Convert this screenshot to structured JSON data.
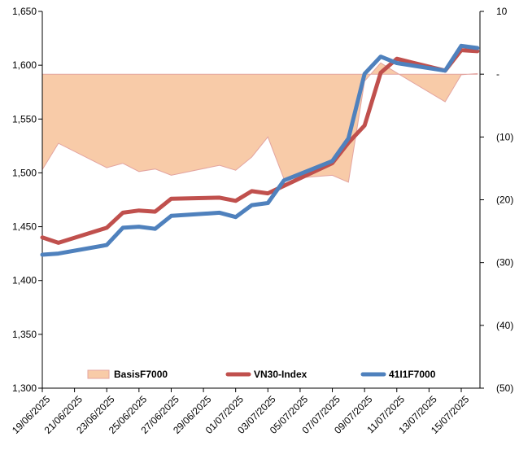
{
  "chart_data": {
    "type": "line",
    "dates": [
      "19/06/2025",
      "20/06/2025",
      "23/06/2025",
      "24/06/2025",
      "25/06/2025",
      "26/06/2025",
      "27/06/2025",
      "30/06/2025",
      "01/07/2025",
      "02/07/2025",
      "03/07/2025",
      "04/07/2025",
      "07/07/2025",
      "08/07/2025",
      "09/07/2025",
      "10/07/2025",
      "11/07/2025",
      "14/07/2025",
      "15/07/2025",
      "16/07/2025"
    ],
    "x_tick_labels": [
      "19/06/2025",
      "21/06/2025",
      "23/06/2025",
      "25/06/2025",
      "27/06/2025",
      "29/06/2025",
      "01/07/2025",
      "03/07/2025",
      "05/07/2025",
      "07/07/2025",
      "09/07/2025",
      "11/07/2025",
      "13/07/2025",
      "15/07/2025"
    ],
    "left_axis": {
      "range": [
        1300,
        1650
      ],
      "tick_labels": [
        "1,300",
        "1,350",
        "1,400",
        "1,450",
        "1,500",
        "1,550",
        "1,600",
        "1,650"
      ]
    },
    "right_axis": {
      "range": [
        -50,
        10
      ],
      "tick_labels": [
        "(50)",
        "(40)",
        "(30)",
        "(20)",
        "(10)",
        "-",
        "10"
      ]
    },
    "series": [
      {
        "name": "BasisF7000",
        "axis": "right",
        "style": "area",
        "color": "#f8cba8",
        "edge_color": "#e3a4a0",
        "values": [
          -15.2,
          -11.0,
          -14.9,
          -14.2,
          -15.5,
          -15.1,
          -16.1,
          -14.5,
          -15.3,
          -13.2,
          -10.0,
          -16.7,
          -16.1,
          -17.2,
          -1.1,
          1.8,
          0.2,
          -4.4,
          -0.1,
          0.1
        ]
      },
      {
        "name": "VN30-Index",
        "axis": "left",
        "style": "line",
        "color": "#c0504d",
        "values": [
          1440,
          1435,
          1449,
          1463,
          1465,
          1464,
          1476,
          1477,
          1474,
          1483,
          1481,
          1488,
          1509,
          1528,
          1544,
          1593,
          1606,
          1595,
          1614,
          1613
        ]
      },
      {
        "name": "41I1F7000",
        "axis": "left",
        "style": "line",
        "color": "#4f81bd",
        "values": [
          1424,
          1425,
          1433,
          1449,
          1450,
          1448,
          1460,
          1463,
          1459,
          1470,
          1472,
          1493,
          1511,
          1532,
          1592,
          1608,
          1602,
          1595,
          1618,
          1616
        ]
      }
    ],
    "grid": false,
    "legend_position": "bottom"
  }
}
